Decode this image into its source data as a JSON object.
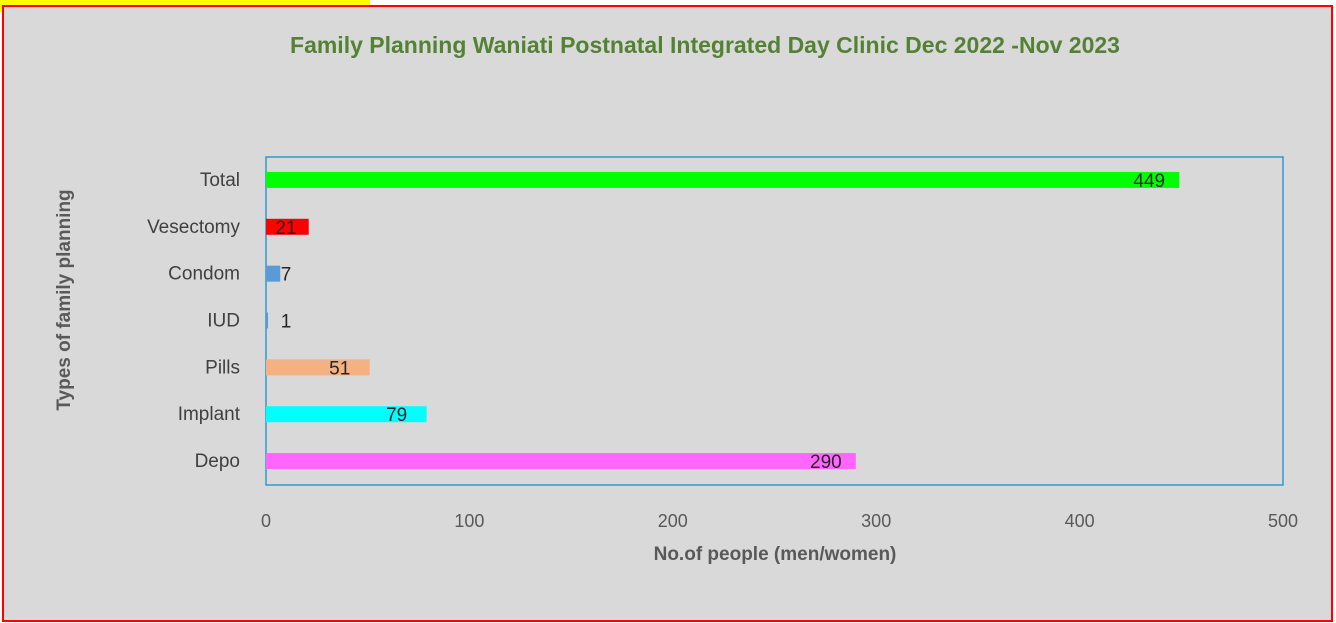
{
  "chart_data": {
    "type": "barh",
    "title": "Family Planning Waniati Postnatal Integrated Day Clinic Dec 2022 -Nov 2023",
    "xlabel": "No.of people (men/women)",
    "ylabel": "Types of family planning",
    "categories": [
      "Total",
      "Vesectomy",
      "Condom",
      "IUD",
      "Pills",
      "Implant",
      "Depo"
    ],
    "values": [
      449,
      21,
      7,
      1,
      51,
      79,
      290
    ],
    "colors": [
      "#00ff00",
      "#ff0000",
      "#5b9bd5",
      "#5b9bd5",
      "#f4b183",
      "#00ffff",
      "#ff66ff"
    ],
    "xlim": [
      0,
      500
    ],
    "xticks": [
      0,
      100,
      200,
      300,
      400,
      500
    ],
    "grid": false
  }
}
